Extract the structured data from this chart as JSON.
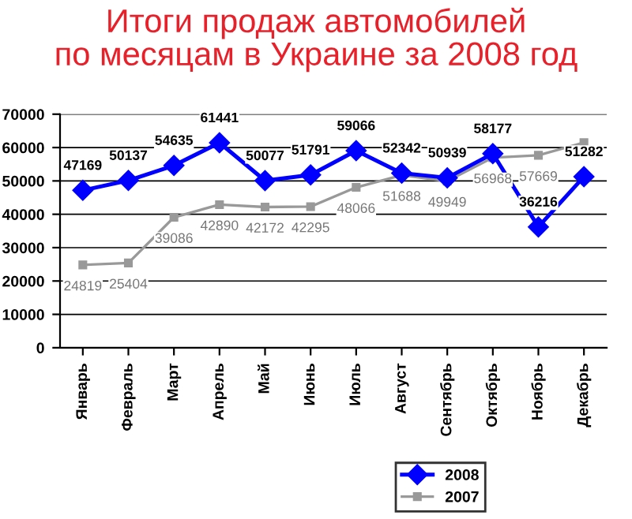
{
  "chart_data": {
    "type": "line",
    "title": "Итоги продаж автомобилей\nпо месяцам в Украине за 2008 год",
    "categories": [
      "Январь",
      "Февраль",
      "Март",
      "Апрель",
      "Май",
      "Июнь",
      "Июль",
      "Август",
      "Сентябрь",
      "Октябрь",
      "Ноябрь",
      "Декабрь"
    ],
    "series": [
      {
        "name": "2008",
        "color": "#0000ff",
        "marker": "diamond",
        "values": [
          47169,
          50137,
          54635,
          61441,
          50077,
          51791,
          59066,
          52342,
          50939,
          58177,
          36216,
          51282
        ],
        "value_labels": [
          "47169",
          "50137",
          "54635",
          "61441",
          "50077",
          "51791",
          "59066",
          "52342",
          "50939",
          "58177",
          "36216",
          "51282"
        ]
      },
      {
        "name": "2007",
        "color": "#999999",
        "marker": "square",
        "values": [
          24819,
          25404,
          39086,
          42890,
          42172,
          42295,
          48066,
          51688,
          49949,
          56968,
          57669,
          61500
        ],
        "value_labels": [
          "24819",
          "25404",
          "39086",
          "42890",
          "42172",
          "42295",
          "48066",
          "51688",
          "49949",
          "56968",
          "57669",
          null
        ]
      }
    ],
    "ylim": [
      0,
      70000
    ],
    "yticks": [
      0,
      10000,
      20000,
      30000,
      40000,
      50000,
      60000,
      70000
    ],
    "grid": "y",
    "legend": "bottom right",
    "line_style": "solid"
  }
}
